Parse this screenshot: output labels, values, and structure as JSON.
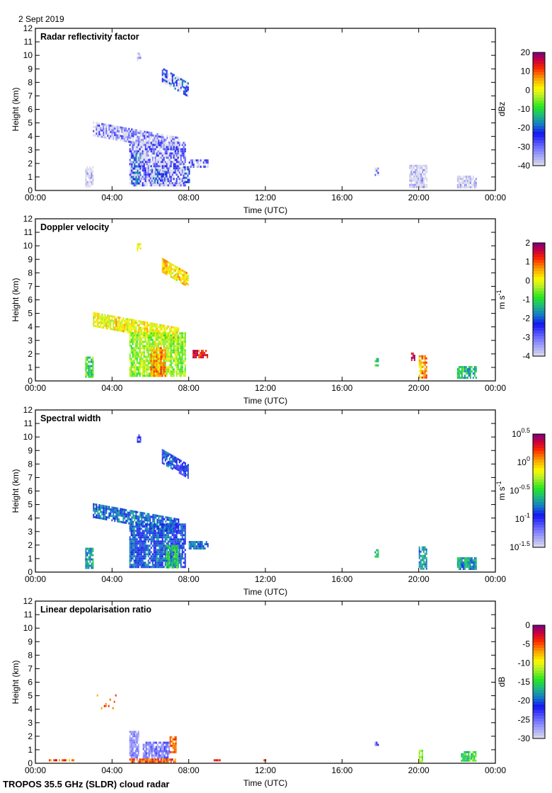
{
  "header": {
    "date": "2 Sept 2019"
  },
  "footer": {
    "instrument": "TROPOS 35.5 GHz (SLDR) cloud radar"
  },
  "chart_data": [
    {
      "type": "heatmap",
      "title": "Radar reflectivity factor",
      "xlabel": "Time (UTC)",
      "ylabel": "Height (km)",
      "xlim": [
        0,
        24
      ],
      "ylim": [
        0,
        12
      ],
      "x_ticks": [
        "00:00",
        "04:00",
        "08:00",
        "12:00",
        "16:00",
        "20:00",
        "00:00"
      ],
      "y_ticks": [
        "0",
        "1",
        "2",
        "3",
        "4",
        "5",
        "6",
        "7",
        "8",
        "9",
        "10",
        "11",
        "12"
      ],
      "colorbar": {
        "label": "dBz",
        "min": -40,
        "max": 20,
        "ticks": [
          "20",
          "10",
          "0",
          "-10",
          "-20",
          "-30",
          "-40"
        ]
      },
      "features": [
        {
          "t0": 6.6,
          "t1": 8.0,
          "h0": 7.0,
          "h1": 9.1,
          "v": 0.3,
          "shape": "slant"
        },
        {
          "t0": 3.0,
          "t1": 7.5,
          "h0": 3.0,
          "h1": 5.1,
          "v": 0.15,
          "shape": "slant"
        },
        {
          "t0": 4.9,
          "t1": 7.8,
          "h0": 0.3,
          "h1": 3.6,
          "v": 0.2,
          "shape": "block"
        },
        {
          "t0": 5.0,
          "t1": 5.5,
          "h0": 0.5,
          "h1": 2.8,
          "v": 0.35,
          "shape": "block"
        },
        {
          "t0": 5.9,
          "t1": 6.8,
          "h0": 0.5,
          "h1": 1.6,
          "v": 0.3,
          "shape": "block"
        },
        {
          "t0": 7.7,
          "t1": 8.0,
          "h0": 0.6,
          "h1": 1.8,
          "v": 0.3,
          "shape": "block"
        },
        {
          "t0": 8.0,
          "t1": 9.0,
          "h0": 1.8,
          "h1": 2.3,
          "v": 0.2,
          "shape": "block"
        },
        {
          "t0": 17.7,
          "t1": 17.9,
          "h0": 1.2,
          "h1": 1.7,
          "v": 0.2,
          "shape": "block"
        },
        {
          "t0": 19.5,
          "t1": 20.4,
          "h0": 0.2,
          "h1": 1.9,
          "v": 0.05,
          "shape": "block"
        },
        {
          "t0": 22.0,
          "t1": 23.0,
          "h0": 0.2,
          "h1": 1.1,
          "v": 0.03,
          "shape": "block"
        },
        {
          "t0": 5.3,
          "t1": 5.5,
          "h0": 9.7,
          "h1": 10.2,
          "v": 0.05,
          "shape": "block"
        },
        {
          "t0": 2.6,
          "t1": 3.0,
          "h0": 0.3,
          "h1": 1.8,
          "v": 0.05,
          "shape": "block"
        }
      ]
    },
    {
      "type": "heatmap",
      "title": "Doppler velocity",
      "xlabel": "Time (UTC)",
      "ylabel": "Height (km)",
      "xlim": [
        0,
        24
      ],
      "ylim": [
        0,
        12
      ],
      "x_ticks": [
        "00:00",
        "04:00",
        "08:00",
        "12:00",
        "16:00",
        "20:00",
        "00:00"
      ],
      "y_ticks": [
        "0",
        "1",
        "2",
        "3",
        "4",
        "5",
        "6",
        "7",
        "8",
        "9",
        "10",
        "11",
        "12"
      ],
      "colorbar": {
        "label": "m s-1",
        "min": -4,
        "max": 2,
        "ticks": [
          "2",
          "1",
          "0",
          "-1",
          "-2",
          "-3",
          "-4"
        ]
      },
      "features": [
        {
          "t0": 6.6,
          "t1": 8.0,
          "h0": 7.0,
          "h1": 9.1,
          "v": 0.72,
          "shape": "slant"
        },
        {
          "t0": 3.0,
          "t1": 7.5,
          "h0": 3.0,
          "h1": 5.1,
          "v": 0.68,
          "shape": "slant"
        },
        {
          "t0": 4.9,
          "t1": 7.8,
          "h0": 0.3,
          "h1": 3.6,
          "v": 0.6,
          "shape": "block"
        },
        {
          "t0": 6.0,
          "t1": 6.8,
          "h0": 0.3,
          "h1": 2.5,
          "v": 0.78,
          "shape": "block"
        },
        {
          "t0": 8.2,
          "t1": 9.0,
          "h0": 1.8,
          "h1": 2.3,
          "v": 0.9,
          "shape": "block"
        },
        {
          "t0": 17.7,
          "t1": 17.9,
          "h0": 1.2,
          "h1": 1.7,
          "v": 0.5,
          "shape": "block"
        },
        {
          "t0": 19.6,
          "t1": 19.8,
          "h0": 1.6,
          "h1": 2.1,
          "v": 0.95,
          "shape": "block"
        },
        {
          "t0": 20.0,
          "t1": 20.4,
          "h0": 0.2,
          "h1": 1.9,
          "v": 0.78,
          "shape": "block"
        },
        {
          "t0": 22.0,
          "t1": 23.0,
          "h0": 0.2,
          "h1": 1.1,
          "v": 0.45,
          "shape": "block"
        },
        {
          "t0": 5.3,
          "t1": 5.5,
          "h0": 9.7,
          "h1": 10.2,
          "v": 0.68,
          "shape": "block"
        },
        {
          "t0": 2.6,
          "t1": 3.0,
          "h0": 0.3,
          "h1": 1.8,
          "v": 0.5,
          "shape": "block"
        }
      ]
    },
    {
      "type": "heatmap",
      "title": "Spectral width",
      "xlabel": "Time (UTC)",
      "ylabel": "Height (km)",
      "xlim": [
        0,
        24
      ],
      "ylim": [
        0,
        12
      ],
      "x_ticks": [
        "00:00",
        "04:00",
        "08:00",
        "12:00",
        "16:00",
        "20:00",
        "00:00"
      ],
      "y_ticks": [
        "0",
        "1",
        "2",
        "3",
        "4",
        "5",
        "6",
        "7",
        "8",
        "9",
        "10",
        "11",
        "12"
      ],
      "colorbar": {
        "label": "m s-1",
        "min": -1.5,
        "max": 0.5,
        "scale": "log10",
        "ticks": [
          "10^0.5",
          "10^0",
          "10^-0.5",
          "10^-1",
          "10^-1.5"
        ]
      },
      "features": [
        {
          "t0": 6.6,
          "t1": 8.0,
          "h0": 7.0,
          "h1": 9.1,
          "v": 0.3,
          "shape": "slant"
        },
        {
          "t0": 3.0,
          "t1": 7.5,
          "h0": 3.0,
          "h1": 5.1,
          "v": 0.35,
          "shape": "slant"
        },
        {
          "t0": 4.9,
          "t1": 7.8,
          "h0": 0.3,
          "h1": 3.6,
          "v": 0.32,
          "shape": "block"
        },
        {
          "t0": 6.8,
          "t1": 7.4,
          "h0": 0.3,
          "h1": 2.0,
          "v": 0.45,
          "shape": "block"
        },
        {
          "t0": 8.0,
          "t1": 9.0,
          "h0": 1.8,
          "h1": 2.3,
          "v": 0.35,
          "shape": "block"
        },
        {
          "t0": 17.7,
          "t1": 17.9,
          "h0": 1.2,
          "h1": 1.7,
          "v": 0.45,
          "shape": "block"
        },
        {
          "t0": 20.0,
          "t1": 20.4,
          "h0": 0.2,
          "h1": 1.9,
          "v": 0.4,
          "shape": "block"
        },
        {
          "t0": 22.0,
          "t1": 23.0,
          "h0": 0.2,
          "h1": 1.1,
          "v": 0.4,
          "shape": "block"
        },
        {
          "t0": 5.3,
          "t1": 5.5,
          "h0": 9.7,
          "h1": 10.2,
          "v": 0.3,
          "shape": "block"
        },
        {
          "t0": 2.6,
          "t1": 3.0,
          "h0": 0.3,
          "h1": 1.8,
          "v": 0.4,
          "shape": "block"
        }
      ]
    },
    {
      "type": "heatmap",
      "title": "Linear depolarisation ratio",
      "xlabel": "Time (UTC)",
      "ylabel": "Height (km)",
      "xlim": [
        0,
        24
      ],
      "ylim": [
        0,
        12
      ],
      "x_ticks": [
        "00:00",
        "04:00",
        "08:00",
        "12:00",
        "16:00",
        "20:00",
        "00:00"
      ],
      "y_ticks": [
        "0",
        "1",
        "2",
        "3",
        "4",
        "5",
        "6",
        "7",
        "8",
        "9",
        "10",
        "11",
        "12"
      ],
      "colorbar": {
        "label": "dB",
        "min": -30,
        "max": 0,
        "ticks": [
          "0",
          "-5",
          "-10",
          "-15",
          "-20",
          "-25",
          "-30"
        ]
      },
      "features": [
        {
          "t0": 4.9,
          "t1": 5.4,
          "h0": 0.4,
          "h1": 2.4,
          "v": 0.12,
          "shape": "block"
        },
        {
          "t0": 5.6,
          "t1": 6.8,
          "h0": 0.4,
          "h1": 1.6,
          "v": 0.15,
          "shape": "block"
        },
        {
          "t0": 6.8,
          "t1": 7.0,
          "h0": 0.3,
          "h1": 1.6,
          "v": 0.18,
          "shape": "block"
        },
        {
          "t0": 7.0,
          "t1": 7.3,
          "h0": 0.8,
          "h1": 2.0,
          "v": 0.78,
          "shape": "block"
        },
        {
          "t0": 4.9,
          "t1": 7.3,
          "h0": 0.15,
          "h1": 0.35,
          "v": 0.82,
          "shape": "block"
        },
        {
          "t0": 3.2,
          "t1": 4.3,
          "h0": 4.0,
          "h1": 5.1,
          "v": 0.8,
          "shape": "dots"
        },
        {
          "t0": 17.7,
          "t1": 17.9,
          "h0": 1.3,
          "h1": 1.6,
          "v": 0.15,
          "shape": "block"
        },
        {
          "t0": 20.0,
          "t1": 20.2,
          "h0": 0.2,
          "h1": 1.0,
          "v": 0.6,
          "shape": "block"
        },
        {
          "t0": 22.2,
          "t1": 23.0,
          "h0": 0.2,
          "h1": 0.9,
          "v": 0.5,
          "shape": "block"
        },
        {
          "t0": 0.7,
          "t1": 2.0,
          "h0": 0.15,
          "h1": 0.3,
          "v": 0.82,
          "shape": "block"
        },
        {
          "t0": 9.3,
          "t1": 9.6,
          "h0": 0.15,
          "h1": 0.3,
          "v": 0.85,
          "shape": "block"
        },
        {
          "t0": 11.9,
          "t1": 12.1,
          "h0": 0.15,
          "h1": 0.3,
          "v": 0.85,
          "shape": "block"
        }
      ]
    }
  ]
}
